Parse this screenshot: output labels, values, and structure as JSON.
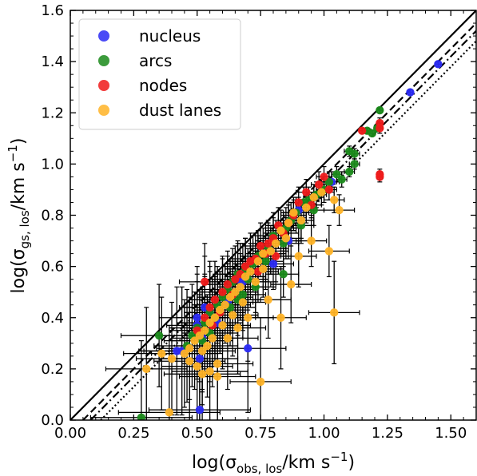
{
  "chart_data": {
    "type": "scatter",
    "xlabel": {
      "base": "log(σ",
      "sub": "obs, los",
      "tail": "/km s",
      "sup": "−1",
      "end": ")"
    },
    "ylabel": {
      "base": "log(σ",
      "sub": "gs, los",
      "tail": "/km s",
      "sup": "−1",
      "end": ")"
    },
    "xlim": [
      0.0,
      1.6
    ],
    "ylim": [
      0.0,
      1.6
    ],
    "xticks": [
      "0.00",
      "0.25",
      "0.50",
      "0.75",
      "1.00",
      "1.25",
      "1.50"
    ],
    "yticks": [
      "0.0",
      "0.2",
      "0.4",
      "0.6",
      "0.8",
      "1.0",
      "1.2",
      "1.4",
      "1.6"
    ],
    "legend_position": "top-left",
    "reference_lines": [
      {
        "style": "solid",
        "offset": 0.0
      },
      {
        "style": "dashed",
        "offset": -0.05
      },
      {
        "style": "dashdot",
        "offset": -0.08
      },
      {
        "style": "dotted",
        "offset": -0.12
      }
    ],
    "series": [
      {
        "name": "nucleus",
        "color": "#2a2af5",
        "points": [
          [
            1.45,
            1.39,
            0.01,
            0.01
          ],
          [
            1.34,
            1.28,
            0.01,
            0.01
          ],
          [
            1.03,
            0.93,
            0.03,
            0.04
          ],
          [
            0.9,
            0.82,
            0.04,
            0.05
          ],
          [
            0.86,
            0.7,
            0.05,
            0.07
          ],
          [
            0.8,
            0.61,
            0.08,
            0.1
          ],
          [
            0.66,
            0.55,
            0.1,
            0.15
          ],
          [
            0.68,
            0.54,
            0.1,
            0.15
          ],
          [
            0.62,
            0.46,
            0.1,
            0.15
          ],
          [
            0.55,
            0.42,
            0.1,
            0.2
          ],
          [
            0.53,
            0.44,
            0.1,
            0.2
          ],
          [
            0.5,
            0.4,
            0.15,
            0.2
          ],
          [
            0.5,
            0.37,
            0.12,
            0.2
          ],
          [
            0.52,
            0.32,
            0.12,
            0.2
          ],
          [
            0.44,
            0.27,
            0.15,
            0.25
          ],
          [
            0.42,
            0.27,
            0.15,
            0.25
          ],
          [
            0.51,
            0.24,
            0.15,
            0.25
          ],
          [
            0.7,
            0.28,
            0.15,
            0.25
          ],
          [
            0.51,
            0.04,
            0.2,
            0.3
          ],
          [
            0.58,
            0.38,
            0.1,
            0.2
          ]
        ]
      },
      {
        "name": "arcs",
        "color": "#1a8a1a",
        "points": [
          [
            1.22,
            1.21,
            0.01,
            0.01
          ],
          [
            1.17,
            1.13,
            0.01,
            0.01
          ],
          [
            1.19,
            1.12,
            0.01,
            0.01
          ],
          [
            1.21,
            1.14,
            0.01,
            0.01
          ],
          [
            1.1,
            1.05,
            0.02,
            0.02
          ],
          [
            1.12,
            1.04,
            0.02,
            0.02
          ],
          [
            1.12,
            1.0,
            0.02,
            0.02
          ],
          [
            1.1,
            0.97,
            0.02,
            0.02
          ],
          [
            1.05,
            0.96,
            0.02,
            0.03
          ],
          [
            1.07,
            0.94,
            0.02,
            0.03
          ],
          [
            1.02,
            0.93,
            0.03,
            0.04
          ],
          [
            1.0,
            0.9,
            0.03,
            0.05
          ],
          [
            0.97,
            0.88,
            0.04,
            0.05
          ],
          [
            0.94,
            0.86,
            0.04,
            0.05
          ],
          [
            0.96,
            0.82,
            0.04,
            0.06
          ],
          [
            0.92,
            0.85,
            0.04,
            0.06
          ],
          [
            0.89,
            0.81,
            0.05,
            0.06
          ],
          [
            0.87,
            0.78,
            0.05,
            0.07
          ],
          [
            0.91,
            0.76,
            0.05,
            0.07
          ],
          [
            0.85,
            0.75,
            0.06,
            0.08
          ],
          [
            0.8,
            0.72,
            0.06,
            0.09
          ],
          [
            0.84,
            0.69,
            0.06,
            0.09
          ],
          [
            0.78,
            0.67,
            0.07,
            0.1
          ],
          [
            0.74,
            0.64,
            0.07,
            0.1
          ],
          [
            0.77,
            0.62,
            0.07,
            0.11
          ],
          [
            0.72,
            0.61,
            0.08,
            0.11
          ],
          [
            0.69,
            0.59,
            0.08,
            0.12
          ],
          [
            0.66,
            0.57,
            0.08,
            0.12
          ],
          [
            0.7,
            0.55,
            0.08,
            0.12
          ],
          [
            0.64,
            0.54,
            0.09,
            0.13
          ],
          [
            0.62,
            0.51,
            0.09,
            0.13
          ],
          [
            0.68,
            0.49,
            0.09,
            0.14
          ],
          [
            0.6,
            0.48,
            0.1,
            0.15
          ],
          [
            0.58,
            0.45,
            0.1,
            0.15
          ],
          [
            0.63,
            0.44,
            0.1,
            0.15
          ],
          [
            0.55,
            0.42,
            0.1,
            0.16
          ],
          [
            0.57,
            0.4,
            0.1,
            0.17
          ],
          [
            0.53,
            0.38,
            0.11,
            0.18
          ],
          [
            0.5,
            0.36,
            0.11,
            0.18
          ],
          [
            0.55,
            0.34,
            0.11,
            0.19
          ],
          [
            0.48,
            0.33,
            0.12,
            0.2
          ],
          [
            0.52,
            0.31,
            0.12,
            0.2
          ],
          [
            0.35,
            0.33,
            0.15,
            0.2
          ],
          [
            0.46,
            0.29,
            0.13,
            0.22
          ],
          [
            0.84,
            0.57,
            0.06,
            0.09
          ],
          [
            0.73,
            0.52,
            0.08,
            0.12
          ],
          [
            0.66,
            0.47,
            0.09,
            0.14
          ],
          [
            0.28,
            0.01,
            0.2,
            0.3
          ]
        ]
      },
      {
        "name": "nodes",
        "color": "#f01a1a",
        "points": [
          [
            1.22,
            1.16,
            0.01,
            0.02
          ],
          [
            1.22,
            1.14,
            0.01,
            0.02
          ],
          [
            1.15,
            1.13,
            0.01,
            0.01
          ],
          [
            1.22,
            0.96,
            0.01,
            0.02
          ],
          [
            1.22,
            0.95,
            0.01,
            0.02
          ],
          [
            1.0,
            0.95,
            0.03,
            0.04
          ],
          [
            1.02,
            0.9,
            0.03,
            0.04
          ],
          [
            0.98,
            0.92,
            0.03,
            0.05
          ],
          [
            0.93,
            0.89,
            0.04,
            0.05
          ],
          [
            0.95,
            0.84,
            0.04,
            0.05
          ],
          [
            0.9,
            0.85,
            0.04,
            0.06
          ],
          [
            0.88,
            0.8,
            0.05,
            0.06
          ],
          [
            0.86,
            0.77,
            0.05,
            0.07
          ],
          [
            0.82,
            0.76,
            0.05,
            0.07
          ],
          [
            0.84,
            0.73,
            0.06,
            0.08
          ],
          [
            0.8,
            0.71,
            0.06,
            0.08
          ],
          [
            0.78,
            0.69,
            0.06,
            0.09
          ],
          [
            0.75,
            0.68,
            0.07,
            0.09
          ],
          [
            0.77,
            0.65,
            0.07,
            0.1
          ],
          [
            0.73,
            0.63,
            0.07,
            0.1
          ],
          [
            0.71,
            0.62,
            0.08,
            0.11
          ],
          [
            0.69,
            0.6,
            0.08,
            0.11
          ],
          [
            0.74,
            0.58,
            0.08,
            0.12
          ],
          [
            0.67,
            0.57,
            0.08,
            0.12
          ],
          [
            0.65,
            0.55,
            0.09,
            0.13
          ],
          [
            0.62,
            0.53,
            0.09,
            0.13
          ],
          [
            0.53,
            0.54,
            0.1,
            0.15
          ],
          [
            0.6,
            0.5,
            0.09,
            0.14
          ],
          [
            0.64,
            0.49,
            0.09,
            0.14
          ],
          [
            0.57,
            0.47,
            0.1,
            0.15
          ],
          [
            0.55,
            0.44,
            0.1,
            0.16
          ],
          [
            0.59,
            0.42,
            0.1,
            0.16
          ],
          [
            0.53,
            0.4,
            0.11,
            0.17
          ],
          [
            0.56,
            0.37,
            0.11,
            0.18
          ],
          [
            0.5,
            0.35,
            0.11,
            0.19
          ],
          [
            0.81,
            0.64,
            0.06,
            0.1
          ]
        ]
      },
      {
        "name": "dust lanes",
        "color": "#ffb326",
        "points": [
          [
            1.06,
            0.82,
            0.06,
            0.06
          ],
          [
            1.04,
            0.86,
            0.04,
            0.05
          ],
          [
            1.02,
            0.66,
            0.08,
            0.1
          ],
          [
            1.04,
            0.42,
            0.1,
            0.2
          ],
          [
            0.99,
            0.89,
            0.03,
            0.05
          ],
          [
            0.96,
            0.87,
            0.04,
            0.05
          ],
          [
            0.93,
            0.83,
            0.04,
            0.06
          ],
          [
            0.88,
            0.81,
            0.05,
            0.06
          ],
          [
            0.91,
            0.78,
            0.05,
            0.07
          ],
          [
            0.86,
            0.77,
            0.05,
            0.07
          ],
          [
            0.83,
            0.74,
            0.06,
            0.08
          ],
          [
            0.85,
            0.71,
            0.06,
            0.08
          ],
          [
            0.81,
            0.69,
            0.06,
            0.09
          ],
          [
            0.79,
            0.66,
            0.07,
            0.09
          ],
          [
            0.76,
            0.65,
            0.07,
            0.1
          ],
          [
            0.74,
            0.62,
            0.07,
            0.1
          ],
          [
            0.76,
            0.59,
            0.08,
            0.11
          ],
          [
            0.71,
            0.58,
            0.08,
            0.11
          ],
          [
            0.69,
            0.56,
            0.08,
            0.12
          ],
          [
            0.73,
            0.54,
            0.08,
            0.12
          ],
          [
            0.67,
            0.52,
            0.09,
            0.13
          ],
          [
            0.65,
            0.5,
            0.09,
            0.13
          ],
          [
            0.63,
            0.48,
            0.09,
            0.14
          ],
          [
            0.68,
            0.46,
            0.09,
            0.14
          ],
          [
            0.61,
            0.45,
            0.1,
            0.15
          ],
          [
            0.59,
            0.43,
            0.1,
            0.15
          ],
          [
            0.64,
            0.41,
            0.1,
            0.16
          ],
          [
            0.57,
            0.4,
            0.1,
            0.16
          ],
          [
            0.55,
            0.38,
            0.11,
            0.17
          ],
          [
            0.6,
            0.37,
            0.11,
            0.17
          ],
          [
            0.53,
            0.35,
            0.11,
            0.18
          ],
          [
            0.51,
            0.33,
            0.12,
            0.18
          ],
          [
            0.56,
            0.32,
            0.12,
            0.19
          ],
          [
            0.49,
            0.31,
            0.12,
            0.19
          ],
          [
            0.54,
            0.29,
            0.12,
            0.2
          ],
          [
            0.47,
            0.28,
            0.13,
            0.2
          ],
          [
            0.52,
            0.27,
            0.13,
            0.21
          ],
          [
            0.45,
            0.26,
            0.13,
            0.21
          ],
          [
            0.36,
            0.26,
            0.15,
            0.22
          ],
          [
            0.4,
            0.24,
            0.14,
            0.22
          ],
          [
            0.47,
            0.23,
            0.14,
            0.23
          ],
          [
            0.58,
            0.22,
            0.14,
            0.23
          ],
          [
            0.3,
            0.2,
            0.16,
            0.24
          ],
          [
            0.5,
            0.21,
            0.14,
            0.24
          ],
          [
            0.55,
            0.19,
            0.15,
            0.25
          ],
          [
            0.52,
            0.18,
            0.15,
            0.25
          ],
          [
            0.58,
            0.17,
            0.15,
            0.26
          ],
          [
            0.75,
            0.15,
            0.12,
            0.25
          ],
          [
            0.83,
            0.4,
            0.1,
            0.2
          ],
          [
            0.87,
            0.53,
            0.08,
            0.15
          ],
          [
            0.9,
            0.64,
            0.07,
            0.12
          ],
          [
            0.95,
            0.7,
            0.06,
            0.1
          ],
          [
            0.78,
            0.47,
            0.09,
            0.15
          ],
          [
            0.7,
            0.4,
            0.1,
            0.17
          ],
          [
            0.39,
            0.03,
            0.2,
            0.3
          ],
          [
            0.62,
            0.32,
            0.12,
            0.2
          ],
          [
            0.66,
            0.36,
            0.11,
            0.18
          ]
        ]
      }
    ]
  }
}
